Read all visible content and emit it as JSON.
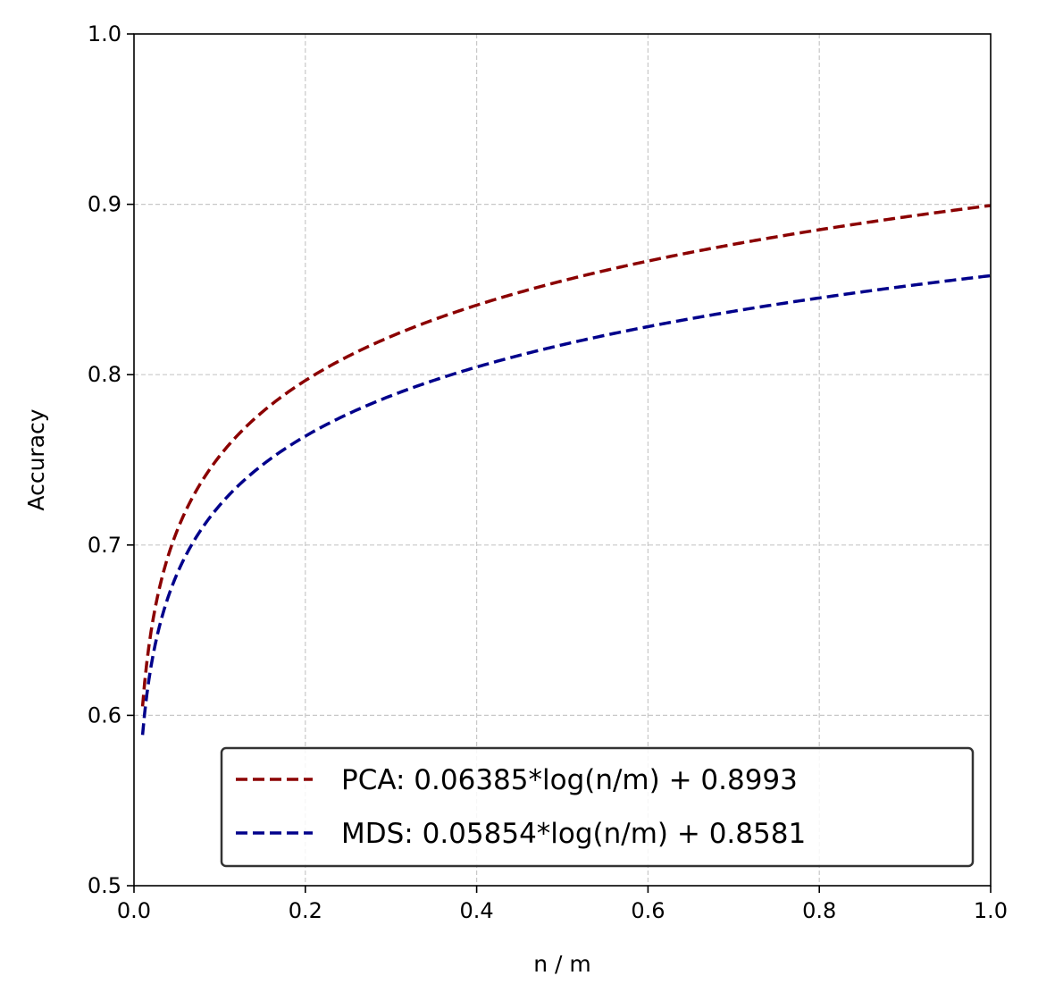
{
  "chart_data": {
    "type": "line",
    "title": "",
    "xlabel": "n / m",
    "ylabel": "Accuracy",
    "xlim": [
      0.0,
      1.0
    ],
    "ylim": [
      0.5,
      1.0
    ],
    "x_ticks": [
      0.0,
      0.2,
      0.4,
      0.6,
      0.8,
      1.0
    ],
    "x_tick_labels": [
      "0.0",
      "0.2",
      "0.4",
      "0.6",
      "0.8",
      "1.0"
    ],
    "y_ticks": [
      0.5,
      0.6,
      0.7,
      0.8,
      0.9,
      1.0
    ],
    "y_tick_labels": [
      "0.5",
      "0.6",
      "0.7",
      "0.8",
      "0.9",
      "1.0"
    ],
    "grid": true,
    "legend_position": "lower-right",
    "x_range": [
      0.01,
      1.0
    ],
    "series": [
      {
        "name": "PCA: 0.06385*log(n/m) + 0.8993",
        "a": 0.06385,
        "b": 0.8993,
        "color": "#8b0000",
        "style": "dashed"
      },
      {
        "name": "MDS: 0.05854*log(n/m) + 0.8581",
        "a": 0.05854,
        "b": 0.8581,
        "color": "#00008b",
        "style": "dashed"
      }
    ]
  }
}
